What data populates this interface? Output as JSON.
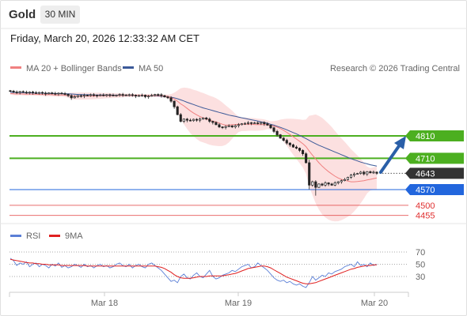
{
  "header": {
    "symbol": "Gold",
    "interval": "30 MIN",
    "datetime": "Friday, March 20, 2026 12:33:32 AM CET"
  },
  "chart_data": [
    {
      "type": "candlestick",
      "legend": [
        {
          "label": "MA 20 + Bollinger Bands",
          "color": "#f08080"
        },
        {
          "label": "MA 50",
          "color": "#3b5998"
        }
      ],
      "credit": "Research © 2026 Trading Central",
      "x_ticks": [
        "Mar 18",
        "Mar 19",
        "Mar 20"
      ],
      "last_price": 4643,
      "levels": [
        {
          "label": "4810",
          "value": 4810,
          "color": "#4caf20",
          "role": "target"
        },
        {
          "label": "4710",
          "value": 4710,
          "color": "#4caf20",
          "role": "target"
        },
        {
          "label": "4643",
          "value": 4643,
          "color": "#333333",
          "role": "last"
        },
        {
          "label": "4570",
          "value": 4570,
          "color": "#2266dd",
          "role": "pivot"
        },
        {
          "label": "4500",
          "value": 4500,
          "color": "#e03030",
          "role": "support"
        },
        {
          "label": "4455",
          "value": 4455,
          "color": "#e03030",
          "role": "support"
        }
      ],
      "close": [
        5010,
        5006,
        5004,
        5008,
        5005,
        5002,
        5006,
        5003,
        5000,
        5004,
        5001,
        4998,
        5002,
        5000,
        4998,
        5001,
        4999,
        4996,
        4990,
        4980,
        4985,
        4990,
        4988,
        4992,
        4990,
        4994,
        4992,
        4990,
        4993,
        4991,
        4994,
        4992,
        4990,
        4992,
        4995,
        4993,
        4991,
        4994,
        4992,
        4988,
        4990,
        4992,
        4985,
        4988,
        4991,
        4995,
        4994,
        4990,
        4984,
        4980,
        4965,
        4940,
        4905,
        4875,
        4885,
        4880,
        4878,
        4884,
        4880,
        4885,
        4890,
        4885,
        4875,
        4870,
        4860,
        4850,
        4848,
        4852,
        4855,
        4850,
        4856,
        4860,
        4864,
        4866,
        4869,
        4867,
        4868,
        4866,
        4870,
        4864,
        4858,
        4846,
        4830,
        4815,
        4800,
        4790,
        4778,
        4770,
        4760,
        4755,
        4745,
        4730,
        4690,
        4590,
        4605,
        4580,
        4595,
        4590,
        4600,
        4595,
        4590,
        4600,
        4605,
        4610,
        4615,
        4625,
        4635,
        4640,
        4642,
        4648,
        4640,
        4650,
        4645,
        4648,
        4643
      ],
      "ma20": [
        5000,
        4998,
        4997,
        4998,
        4997,
        4996,
        4997,
        4996,
        4996,
        4995,
        4995,
        4994,
        4995,
        4994,
        4993,
        4993,
        4993,
        4992,
        4991,
        4989,
        4988,
        4988,
        4988,
        4988,
        4988,
        4988,
        4988,
        4989,
        4989,
        4989,
        4990,
        4990,
        4990,
        4990,
        4991,
        4991,
        4991,
        4991,
        4991,
        4991,
        4991,
        4991,
        4990,
        4990,
        4990,
        4990,
        4990,
        4989,
        4988,
        4986,
        4982,
        4975,
        4965,
        4953,
        4944,
        4933,
        4922,
        4912,
        4904,
        4896,
        4891,
        4886,
        4880,
        4876,
        4872,
        4867,
        4862,
        4858,
        4858,
        4860,
        4861,
        4862,
        4862,
        4862,
        4862,
        4862,
        4861,
        4860,
        4860,
        4860,
        4860,
        4857,
        4854,
        4849,
        4843,
        4835,
        4826,
        4816,
        4806,
        4796,
        4786,
        4775,
        4762,
        4742,
        4724,
        4707,
        4690,
        4675,
        4662,
        4650,
        4640,
        4630,
        4622,
        4616,
        4612,
        4608,
        4605,
        4605,
        4606,
        4608,
        4610,
        4613,
        4616,
        4619,
        4622
      ],
      "ma50": [
        5005,
        5004,
        5004,
        5003,
        5003,
        5002,
        5002,
        5002,
        5001,
        5001,
        5001,
        5000,
        5000,
        5000,
        4999,
        4999,
        4999,
        4998,
        4998,
        4997,
        4996,
        4995,
        4995,
        4994,
        4994,
        4994,
        4993,
        4993,
        4993,
        4993,
        4992,
        4992,
        4992,
        4992,
        4992,
        4991,
        4991,
        4991,
        4991,
        4991,
        4990,
        4990,
        4990,
        4989,
        4989,
        4989,
        4988,
        4987,
        4986,
        4985,
        4983,
        4980,
        4976,
        4971,
        4966,
        4960,
        4955,
        4950,
        4945,
        4940,
        4935,
        4931,
        4927,
        4923,
        4919,
        4915,
        4911,
        4907,
        4903,
        4900,
        4897,
        4894,
        4891,
        4888,
        4885,
        4882,
        4879,
        4876,
        4873,
        4870,
        4866,
        4862,
        4858,
        4853,
        4848,
        4843,
        4837,
        4831,
        4825,
        4819,
        4812,
        4805,
        4798,
        4790,
        4782,
        4775,
        4768,
        4762,
        4756,
        4750,
        4744,
        4738,
        4732,
        4726,
        4720,
        4714,
        4708,
        4703,
        4698,
        4693,
        4689,
        4685,
        4681,
        4678,
        4675
      ]
    },
    {
      "type": "line",
      "legend": [
        {
          "label": "RSI",
          "color": "#5b7fd6"
        },
        {
          "label": "9MA",
          "color": "#e02020"
        }
      ],
      "y_ticks": [
        70,
        50,
        30
      ],
      "ylim": [
        0,
        100
      ],
      "series": [
        {
          "name": "RSI",
          "values": [
            60,
            56,
            48,
            52,
            50,
            54,
            46,
            50,
            52,
            46,
            50,
            48,
            44,
            50,
            47,
            52,
            45,
            48,
            44,
            46,
            50,
            48,
            45,
            50,
            46,
            48,
            44,
            48,
            50,
            46,
            48,
            44,
            46,
            50,
            52,
            48,
            46,
            50,
            44,
            48,
            50,
            46,
            44,
            50,
            52,
            48,
            44,
            40,
            34,
            28,
            22,
            24,
            20,
            30,
            34,
            28,
            26,
            32,
            36,
            30,
            28,
            34,
            40,
            30,
            26,
            28,
            32,
            34,
            36,
            40,
            38,
            42,
            46,
            48,
            50,
            44,
            46,
            52,
            48,
            44,
            40,
            34,
            28,
            24,
            22,
            24,
            20,
            22,
            18,
            16,
            18,
            14,
            12,
            20,
            30,
            24,
            28,
            32,
            30,
            36,
            34,
            38,
            40,
            42,
            46,
            48,
            50,
            46,
            54,
            48,
            50,
            46,
            52,
            48,
            50
          ]
        },
        {
          "name": "9MA",
          "values": [
            58,
            57,
            56,
            55,
            54,
            53,
            52,
            52,
            51,
            51,
            50,
            50,
            49,
            49,
            49,
            49,
            48,
            48,
            48,
            48,
            48,
            48,
            48,
            48,
            47,
            47,
            47,
            47,
            47,
            47,
            47,
            47,
            47,
            47,
            47,
            47,
            47,
            47,
            47,
            47,
            47,
            47,
            47,
            47,
            47,
            47,
            46,
            45,
            43,
            40,
            37,
            33,
            30,
            28,
            27,
            27,
            27,
            28,
            29,
            30,
            30,
            30,
            31,
            31,
            31,
            31,
            31,
            32,
            33,
            34,
            35,
            37,
            39,
            41,
            43,
            44,
            45,
            46,
            47,
            47,
            46,
            44,
            41,
            38,
            35,
            32,
            29,
            27,
            25,
            23,
            21,
            19,
            18,
            18,
            19,
            20,
            22,
            24,
            26,
            28,
            30,
            32,
            34,
            36,
            38,
            40,
            42,
            43,
            45,
            46,
            47,
            48,
            48,
            49,
            49
          ]
        }
      ]
    }
  ]
}
